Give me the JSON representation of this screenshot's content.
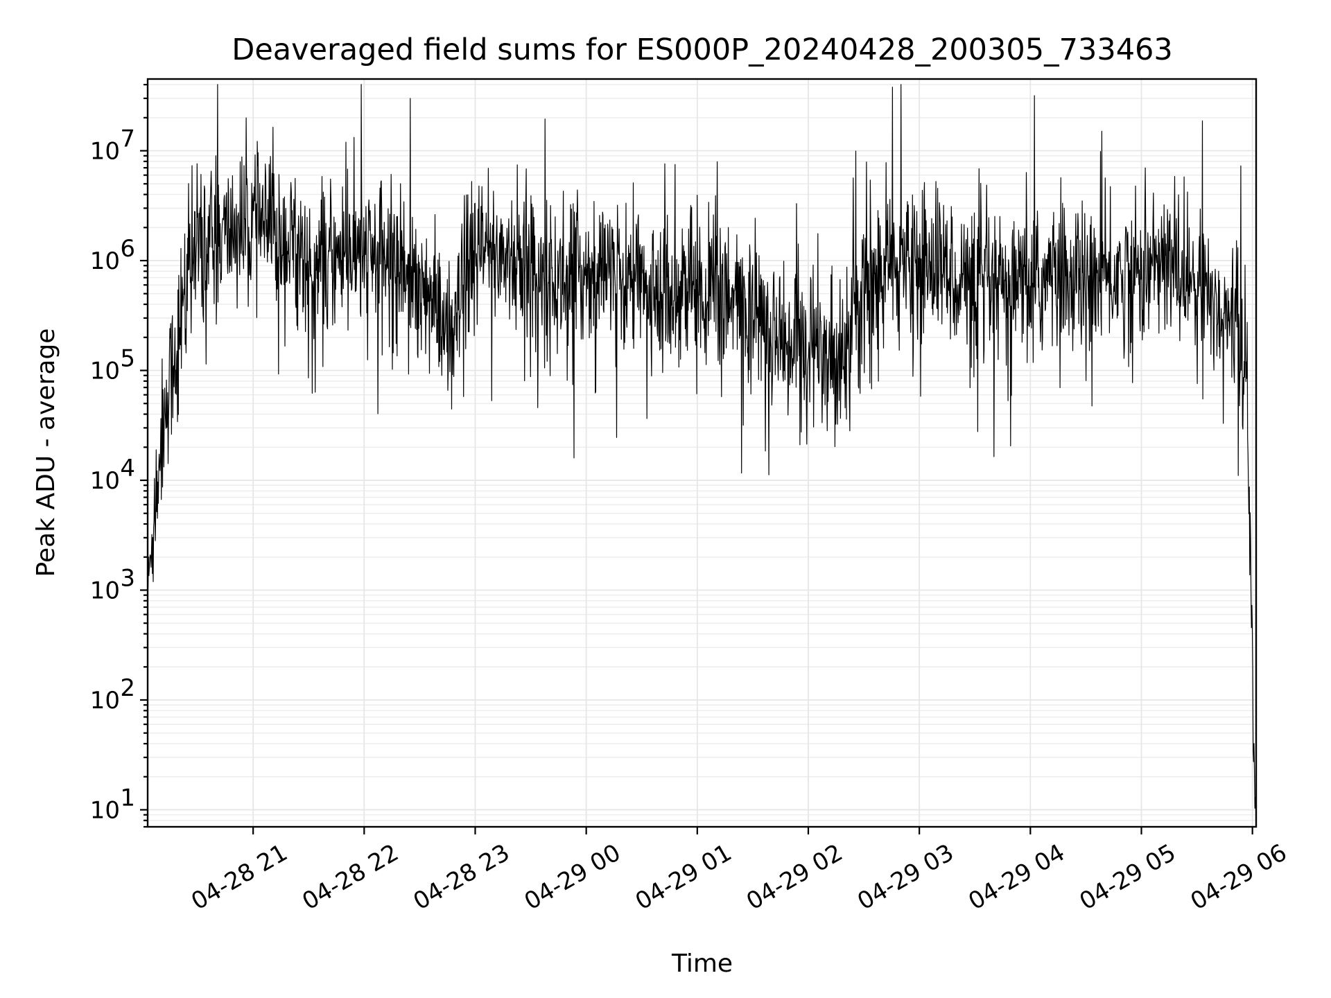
{
  "chart_data": {
    "type": "line",
    "title": "Deaveraged field sums for ES000P_20240428_200305_733463",
    "xlabel": "Time",
    "ylabel": "Peak ADU - average",
    "yscale": "log",
    "ylim": [
      7,
      45000000
    ],
    "xlim": [
      "04-28 20:03",
      "04-29 06:02"
    ],
    "grid": true,
    "line_color": "#000000",
    "x_ticks": [
      "04-28 21",
      "04-28 22",
      "04-28 23",
      "04-29 00",
      "04-29 01",
      "04-29 02",
      "04-29 03",
      "04-29 04",
      "04-29 05",
      "04-29 06"
    ],
    "y_ticks": [
      {
        "base": "10",
        "exp": "1",
        "value": 10
      },
      {
        "base": "10",
        "exp": "2",
        "value": 100
      },
      {
        "base": "10",
        "exp": "3",
        "value": 1000
      },
      {
        "base": "10",
        "exp": "4",
        "value": 10000
      },
      {
        "base": "10",
        "exp": "5",
        "value": 100000
      },
      {
        "base": "10",
        "exp": "6",
        "value": 1000000
      },
      {
        "base": "10",
        "exp": "7",
        "value": 10000000
      }
    ],
    "series": [
      {
        "x": [
          "04-28 20:03",
          "04-28 20:06",
          "04-28 20:09",
          "04-28 20:12",
          "04-28 20:15",
          "04-28 20:18",
          "04-28 20:22",
          "04-28 20:26",
          "04-28 20:30",
          "04-28 20:35",
          "04-28 20:40",
          "04-28 20:45",
          "04-28 20:50",
          "04-28 20:55",
          "04-28 21:00",
          "04-28 21:10",
          "04-28 21:20",
          "04-28 21:28",
          "04-28 21:30",
          "04-28 21:35",
          "04-28 21:45",
          "04-28 22:00",
          "04-28 22:15",
          "04-28 22:30",
          "04-28 22:40",
          "04-28 22:45",
          "04-28 22:48",
          "04-28 22:50",
          "04-28 22:55",
          "04-28 23:00",
          "04-28 23:15",
          "04-28 23:30",
          "04-28 23:45",
          "04-29 00:00",
          "04-29 00:15",
          "04-29 00:30",
          "04-29 00:45",
          "04-29 01:00",
          "04-29 01:15",
          "04-29 01:30",
          "04-29 01:40",
          "04-29 01:50",
          "04-29 02:00",
          "04-29 02:15",
          "04-29 02:25",
          "04-29 02:40",
          "04-29 03:00",
          "04-29 03:15",
          "04-29 03:30",
          "04-29 03:45",
          "04-29 04:00",
          "04-29 04:15",
          "04-29 04:30",
          "04-29 04:45",
          "04-29 05:00",
          "04-29 05:15",
          "04-29 05:30",
          "04-29 05:45",
          "04-29 05:50",
          "04-29 05:55",
          "04-29 05:57",
          "04-29 05:58",
          "04-29 05:59",
          "04-29 06:00",
          "04-29 06:01",
          "04-29 06:02"
        ],
        "y": [
          1000,
          4000,
          15000,
          40000,
          80000,
          150000,
          400000,
          900000,
          1300000,
          1600000,
          1500000,
          1700000,
          1900000,
          2000000,
          2200000,
          1800000,
          1400000,
          1200000,
          600000,
          900000,
          1100000,
          1100000,
          1000000,
          700000,
          300000,
          200000,
          150000,
          250000,
          800000,
          1100000,
          1200000,
          800000,
          600000,
          800000,
          700000,
          600000,
          500000,
          600000,
          400000,
          350000,
          250000,
          200000,
          150000,
          120000,
          400000,
          800000,
          1000000,
          800000,
          600000,
          500000,
          600000,
          700000,
          700000,
          700000,
          800000,
          900000,
          600000,
          350000,
          250000,
          150000,
          60000,
          5000,
          3000,
          200,
          30,
          8
        ]
      }
    ]
  }
}
